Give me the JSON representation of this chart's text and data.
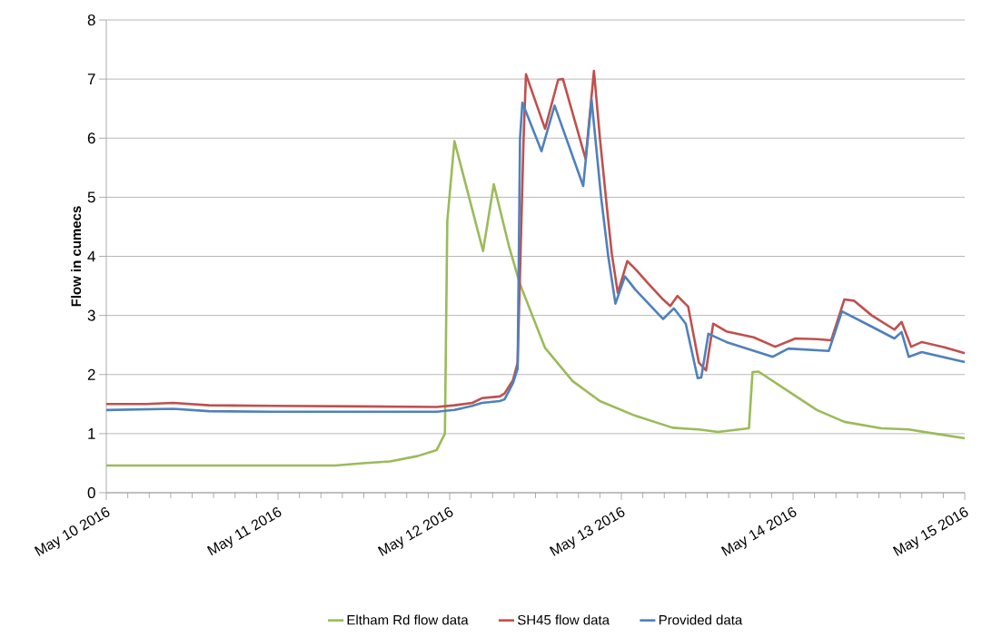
{
  "chart_data": {
    "type": "line",
    "ylabel": "Flow in cumecs",
    "xlim": [
      "2016-05-10T00:00",
      "2016-05-15T00:00"
    ],
    "xticks": [
      {
        "value": "2016-05-10",
        "label": "May 10 2016"
      },
      {
        "value": "2016-05-11",
        "label": "May 11 2016"
      },
      {
        "value": "2016-05-12",
        "label": "May 12 2016"
      },
      {
        "value": "2016-05-13",
        "label": "May 13 2016"
      },
      {
        "value": "2016-05-14",
        "label": "May 14 2016"
      },
      {
        "value": "2016-05-15",
        "label": "May 15 2016"
      }
    ],
    "ylim": [
      0,
      8
    ],
    "yticks": [
      0,
      1,
      2,
      3,
      4,
      5,
      6,
      7,
      8
    ],
    "grid": "y",
    "legend": "bottom",
    "marker": "none",
    "line_style": "solid",
    "series": [
      {
        "name": "Eltham Rd flow data",
        "color": "#9bbb59",
        "x": [
          "2016-05-10T00:00",
          "2016-05-11T08:00",
          "2016-05-11T11:50",
          "2016-05-11T15:40",
          "2016-05-11T19:30",
          "2016-05-11T22:10",
          "2016-05-11T23:20",
          "2016-05-11T23:40",
          "2016-05-12T00:40",
          "2016-05-12T04:40",
          "2016-05-12T06:10",
          "2016-05-12T08:20",
          "2016-05-12T09:50",
          "2016-05-12T13:20",
          "2016-05-12T17:10",
          "2016-05-12T21:00",
          "2016-05-13T02:00",
          "2016-05-13T07:10",
          "2016-05-13T10:50",
          "2016-05-13T13:30",
          "2016-05-13T17:50",
          "2016-05-13T18:20",
          "2016-05-13T19:10",
          "2016-05-13T23:40",
          "2016-05-14T03:20",
          "2016-05-14T07:10",
          "2016-05-14T12:20",
          "2016-05-14T16:10",
          "2016-05-14T19:50",
          "2016-05-15T00:00"
        ],
        "values": [
          0.46,
          0.46,
          0.5,
          0.53,
          0.62,
          0.72,
          1.0,
          4.6,
          5.95,
          4.09,
          5.22,
          4.15,
          3.53,
          2.45,
          1.89,
          1.55,
          1.3,
          1.1,
          1.07,
          1.03,
          1.09,
          2.04,
          2.05,
          1.69,
          1.4,
          1.2,
          1.09,
          1.07,
          1.0,
          0.92
        ]
      },
      {
        "name": "SH45 flow data",
        "color": "#c0504d",
        "x": [
          "2016-05-10T00:00",
          "2016-05-10T05:30",
          "2016-05-10T09:20",
          "2016-05-10T14:20",
          "2016-05-10T23:10",
          "2016-05-11T11:50",
          "2016-05-11T22:10",
          "2016-05-12T00:40",
          "2016-05-12T03:10",
          "2016-05-12T04:30",
          "2016-05-12T07:00",
          "2016-05-12T07:40",
          "2016-05-12T08:50",
          "2016-05-12T09:30",
          "2016-05-12T10:20",
          "2016-05-12T10:40",
          "2016-05-12T13:20",
          "2016-05-12T15:10",
          "2016-05-12T15:50",
          "2016-05-12T19:00",
          "2016-05-12T20:10",
          "2016-05-12T21:00",
          "2016-05-12T22:00",
          "2016-05-12T22:40",
          "2016-05-12T23:30",
          "2016-05-13T00:50",
          "2016-05-13T02:00",
          "2016-05-13T03:50",
          "2016-05-13T05:50",
          "2016-05-13T06:50",
          "2016-05-13T07:50",
          "2016-05-13T09:20",
          "2016-05-13T10:50",
          "2016-05-13T11:50",
          "2016-05-13T12:50",
          "2016-05-13T14:40",
          "2016-05-13T18:30",
          "2016-05-13T21:30",
          "2016-05-14T00:20",
          "2016-05-14T03:20",
          "2016-05-14T05:20",
          "2016-05-14T07:10",
          "2016-05-14T08:30",
          "2016-05-14T11:00",
          "2016-05-14T14:10",
          "2016-05-14T15:10",
          "2016-05-14T16:30",
          "2016-05-14T18:00",
          "2016-05-14T21:10",
          "2016-05-15T00:00"
        ],
        "values": [
          1.5,
          1.5,
          1.52,
          1.48,
          1.47,
          1.46,
          1.45,
          1.48,
          1.52,
          1.6,
          1.63,
          1.68,
          1.9,
          2.2,
          6.0,
          7.08,
          6.16,
          6.99,
          7.0,
          5.65,
          7.14,
          6.0,
          4.8,
          4.04,
          3.38,
          3.92,
          3.78,
          3.53,
          3.27,
          3.16,
          3.33,
          3.15,
          2.2,
          2.07,
          2.86,
          2.73,
          2.63,
          2.47,
          2.61,
          2.6,
          2.58,
          3.27,
          3.25,
          3.0,
          2.76,
          2.89,
          2.47,
          2.55,
          2.46,
          2.36
        ]
      },
      {
        "name": "Provided data",
        "color": "#4f81bd",
        "x": [
          "2016-05-10T00:00",
          "2016-05-10T09:20",
          "2016-05-10T14:20",
          "2016-05-10T23:10",
          "2016-05-11T11:50",
          "2016-05-11T22:10",
          "2016-05-12T00:40",
          "2016-05-12T03:10",
          "2016-05-12T04:30",
          "2016-05-12T07:00",
          "2016-05-12T07:40",
          "2016-05-12T08:50",
          "2016-05-12T09:30",
          "2016-05-12T09:50",
          "2016-05-12T10:10",
          "2016-05-12T12:50",
          "2016-05-12T14:40",
          "2016-05-12T18:40",
          "2016-05-12T19:50",
          "2016-05-12T21:10",
          "2016-05-12T22:10",
          "2016-05-12T23:10",
          "2016-05-13T00:30",
          "2016-05-13T02:00",
          "2016-05-13T05:50",
          "2016-05-13T07:20",
          "2016-05-13T09:00",
          "2016-05-13T10:40",
          "2016-05-13T11:10",
          "2016-05-13T12:10",
          "2016-05-13T14:40",
          "2016-05-13T21:10",
          "2016-05-13T23:20",
          "2016-05-14T05:00",
          "2016-05-14T06:50",
          "2016-05-14T11:00",
          "2016-05-14T14:10",
          "2016-05-14T15:10",
          "2016-05-14T16:10",
          "2016-05-14T18:00",
          "2016-05-15T00:00"
        ],
        "values": [
          1.4,
          1.42,
          1.38,
          1.37,
          1.37,
          1.37,
          1.4,
          1.47,
          1.52,
          1.55,
          1.58,
          1.85,
          2.1,
          6.0,
          6.6,
          5.78,
          6.55,
          5.19,
          6.65,
          5.0,
          4.0,
          3.2,
          3.66,
          3.43,
          2.94,
          3.12,
          2.86,
          1.94,
          1.95,
          2.69,
          2.55,
          2.3,
          2.44,
          2.4,
          3.07,
          2.81,
          2.61,
          2.72,
          2.3,
          2.38,
          2.21
        ]
      }
    ]
  }
}
